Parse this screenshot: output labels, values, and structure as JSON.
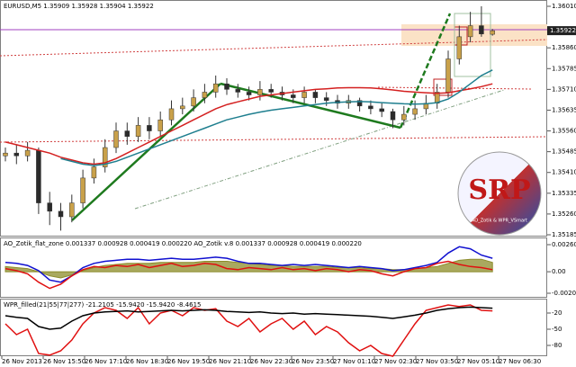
{
  "chart_data": [
    {
      "type": "candlestick",
      "title": "EURUSD,M5 1.35909 1.35928 1.35904 1.35922",
      "open": [
        1.3547,
        1.3548,
        1.3547,
        1.3549,
        1.353,
        1.3527,
        1.3525,
        1.353,
        1.3539,
        1.3543,
        1.355,
        1.3556,
        1.3554,
        1.3558,
        1.3556,
        1.356,
        1.3564,
        1.3565,
        1.3568,
        1.357,
        1.3573,
        1.3571,
        1.357,
        1.3569,
        1.3571,
        1.357,
        1.3569,
        1.3568,
        1.357,
        1.3568,
        1.3567,
        1.3566,
        1.3567,
        1.3565,
        1.3564,
        1.3563,
        1.356,
        1.3562,
        1.3564,
        1.3566,
        1.357,
        1.3582,
        1.359,
        1.3594,
        1.35909
      ],
      "high": [
        1.355,
        1.3551,
        1.3552,
        1.355,
        1.3534,
        1.353,
        1.3533,
        1.3542,
        1.3546,
        1.3553,
        1.3559,
        1.3559,
        1.3561,
        1.3561,
        1.3563,
        1.3567,
        1.3568,
        1.3571,
        1.3573,
        1.3576,
        1.3575,
        1.3573,
        1.3572,
        1.3574,
        1.3573,
        1.3572,
        1.3571,
        1.3572,
        1.3571,
        1.357,
        1.3569,
        1.3569,
        1.3568,
        1.3567,
        1.3566,
        1.3564,
        1.3565,
        1.3567,
        1.3569,
        1.3573,
        1.3585,
        1.3594,
        1.3599,
        1.3601,
        1.35928
      ],
      "low": [
        1.3545,
        1.3544,
        1.3545,
        1.3526,
        1.3522,
        1.352,
        1.3523,
        1.3528,
        1.3537,
        1.3541,
        1.3548,
        1.3551,
        1.3552,
        1.3553,
        1.3554,
        1.3558,
        1.3562,
        1.3563,
        1.3566,
        1.3568,
        1.3569,
        1.3568,
        1.3567,
        1.3567,
        1.3568,
        1.3567,
        1.3566,
        1.3566,
        1.3566,
        1.3565,
        1.3564,
        1.3564,
        1.3563,
        1.3562,
        1.3561,
        1.3557,
        1.3558,
        1.356,
        1.3562,
        1.3564,
        1.3568,
        1.358,
        1.3588,
        1.359,
        1.35904
      ],
      "close": [
        1.3548,
        1.3547,
        1.3549,
        1.353,
        1.3527,
        1.3525,
        1.353,
        1.3539,
        1.3543,
        1.355,
        1.3556,
        1.3554,
        1.3558,
        1.3556,
        1.356,
        1.3564,
        1.3565,
        1.3568,
        1.357,
        1.3573,
        1.3571,
        1.357,
        1.3569,
        1.3571,
        1.357,
        1.3569,
        1.3568,
        1.357,
        1.3568,
        1.3567,
        1.3566,
        1.3567,
        1.3565,
        1.3564,
        1.3563,
        1.356,
        1.3562,
        1.3564,
        1.3566,
        1.357,
        1.3582,
        1.359,
        1.3594,
        1.3591,
        1.35922
      ],
      "up_color": "#c9a14a",
      "down_color": "#2b2b2b",
      "series": [
        {
          "color": "#d42020",
          "values": [
            1.3552,
            1.3551,
            1.355,
            1.3549,
            1.3548,
            1.35465,
            1.35455,
            1.35445,
            1.3544,
            1.35445,
            1.3546,
            1.3548,
            1.355,
            1.3552,
            1.3554,
            1.3556,
            1.3558,
            1.356,
            1.3562,
            1.3564,
            1.35655,
            1.35665,
            1.35675,
            1.35685,
            1.3569,
            1.35695,
            1.357,
            1.35705,
            1.3571,
            1.35712,
            1.35715,
            1.35716,
            1.35716,
            1.35715,
            1.35712,
            1.35708,
            1.35703,
            1.357,
            1.35698,
            1.35696,
            1.35698,
            1.35705,
            1.35712,
            1.3572,
            1.3573
          ]
        },
        {
          "color": "#1f7f8f",
          "values": [
            null,
            null,
            null,
            null,
            null,
            1.3546,
            1.3545,
            1.3544,
            1.35435,
            1.3544,
            1.3545,
            1.35465,
            1.3548,
            1.35495,
            1.3551,
            1.35525,
            1.3554,
            1.35555,
            1.3557,
            1.35585,
            1.356,
            1.3561,
            1.3562,
            1.35628,
            1.35635,
            1.3564,
            1.35645,
            1.3565,
            1.35655,
            1.3566,
            1.35663,
            1.35665,
            1.35666,
            1.35665,
            1.35662,
            1.3566,
            1.35658,
            1.35657,
            1.35658,
            1.35662,
            1.35675,
            1.357,
            1.3573,
            1.3576,
            1.3578
          ]
        }
      ],
      "last_price": 1.35922,
      "ylim": [
        1.35185,
        1.3601
      ],
      "yticks": [
        {
          "value": 1.3601,
          "label": "1.36010"
        },
        {
          "value": 1.3586,
          "label": "1.35860"
        },
        {
          "value": 1.35785,
          "label": "1.35785"
        },
        {
          "value": 1.3571,
          "label": "1.35710"
        },
        {
          "value": 1.35635,
          "label": "1.35635"
        },
        {
          "value": 1.3556,
          "label": "1.35560"
        },
        {
          "value": 1.35485,
          "label": "1.35485"
        },
        {
          "value": 1.3541,
          "label": "1.35410"
        },
        {
          "value": 1.35335,
          "label": "1.35335"
        },
        {
          "value": 1.3526,
          "label": "1.35260"
        },
        {
          "value": 1.35185,
          "label": "1.35185"
        }
      ],
      "logo": {
        "text": "SRP",
        "caption": "AO_Zotik & WPR_VSmart"
      }
    },
    {
      "type": "line",
      "title": "AO_Zotik_flat_zone 0.001337 0.000928 0.000419 0.000220 AO_Zotik v.8 0.001337 0.000928 0.000419 0.000220",
      "series": [
        {
          "color": "#8c8c2a",
          "style": "area",
          "values": [
            0.0005,
            0.0004,
            0.0003,
            0.0,
            -0.0004,
            -0.0006,
            -0.0003,
            0.0001,
            0.0004,
            0.0006,
            0.0007,
            0.0008,
            0.0008,
            0.0008,
            0.0009,
            0.0009,
            0.0009,
            0.0009,
            0.001,
            0.001,
            0.001,
            0.0009,
            0.0008,
            0.0007,
            0.0006,
            0.0006,
            0.0005,
            0.0005,
            0.0005,
            0.0005,
            0.0004,
            0.0004,
            0.0004,
            0.0003,
            0.0003,
            0.0002,
            0.0002,
            0.0003,
            0.0004,
            0.0005,
            0.0008,
            0.0011,
            0.0012,
            0.0012,
            0.0009
          ]
        },
        {
          "color": "#1010d0",
          "style": "line",
          "values": [
            0.0009,
            0.0008,
            0.0006,
            0.0001,
            -0.0008,
            -0.001,
            -0.0004,
            0.0004,
            0.0008,
            0.001,
            0.0011,
            0.0012,
            0.0012,
            0.0011,
            0.0012,
            0.0013,
            0.0012,
            0.0012,
            0.0013,
            0.0014,
            0.0013,
            0.001,
            0.0008,
            0.0008,
            0.0007,
            0.0006,
            0.0007,
            0.0006,
            0.0007,
            0.0006,
            0.0005,
            0.0004,
            0.0005,
            0.0004,
            0.0003,
            0.0001,
            0.0002,
            0.0004,
            0.0006,
            0.0009,
            0.0018,
            0.0024,
            0.0022,
            0.0016,
            0.0013
          ]
        },
        {
          "color": "#e01010",
          "style": "line",
          "values": [
            0.0003,
            0.0001,
            -0.0002,
            -0.001,
            -0.0016,
            -0.0012,
            -0.0004,
            0.0002,
            0.0005,
            0.0004,
            0.0006,
            0.0005,
            0.0007,
            0.0004,
            0.0006,
            0.0008,
            0.0005,
            0.0006,
            0.0008,
            0.0007,
            0.0003,
            0.0002,
            0.0004,
            0.0003,
            0.0002,
            0.0004,
            0.0002,
            0.0003,
            0.0001,
            0.0003,
            0.0002,
            0.0,
            0.0002,
            0.0001,
            -0.0002,
            -0.0004,
            0.0,
            0.0003,
            0.0004,
            0.0008,
            0.001,
            0.0007,
            0.0005,
            0.0004,
            0.0002
          ]
        }
      ],
      "ylim": [
        -0.002068,
        0.002602
      ],
      "yticks": [
        0.002602,
        {
          "value": 0,
          "label": "0.00"
        },
        -0.002068
      ]
    },
    {
      "type": "line",
      "title": "WPR_filled(21|55|77|277) -21.2105 -15.9420 -15.9420 -8.4615",
      "series": [
        {
          "color": "#e01010",
          "style": "line",
          "values": [
            -40,
            -60,
            -50,
            -95,
            -98,
            -90,
            -70,
            -40,
            -20,
            -10,
            -15,
            -30,
            -10,
            -40,
            -20,
            -15,
            -25,
            -10,
            -15,
            -12,
            -35,
            -45,
            -30,
            -55,
            -40,
            -30,
            -50,
            -35,
            -60,
            -45,
            -55,
            -75,
            -90,
            -80,
            -95,
            -100,
            -70,
            -40,
            -15,
            -10,
            -5,
            -8,
            -5,
            -15,
            -16
          ]
        },
        {
          "color": "#000000",
          "style": "line",
          "values": [
            -25,
            -28,
            -30,
            -45,
            -50,
            -48,
            -35,
            -25,
            -20,
            -18,
            -17,
            -16,
            -18,
            -17,
            -16,
            -15,
            -16,
            -15,
            -14,
            -15,
            -17,
            -18,
            -19,
            -18,
            -20,
            -21,
            -20,
            -22,
            -21,
            -22,
            -23,
            -24,
            -25,
            -26,
            -28,
            -30,
            -27,
            -24,
            -20,
            -15,
            -12,
            -10,
            -9,
            -10,
            -11
          ]
        }
      ],
      "ylim": [
        -100,
        0
      ],
      "yticks": [
        -20,
        -50,
        -80
      ],
      "x_labels": [
        "26 Nov 2013",
        "26 Nov 15:50",
        "26 Nov 17:10",
        "26 Nov 18:30",
        "26 Nov 19:50",
        "26 Nov 21:10",
        "26 Nov 22:30",
        "26 Nov 23:50",
        "27 Nov 01:10",
        "27 Nov 02:30",
        "27 Nov 03:50",
        "27 Nov 05:10",
        "27 Nov 06:30"
      ]
    }
  ]
}
